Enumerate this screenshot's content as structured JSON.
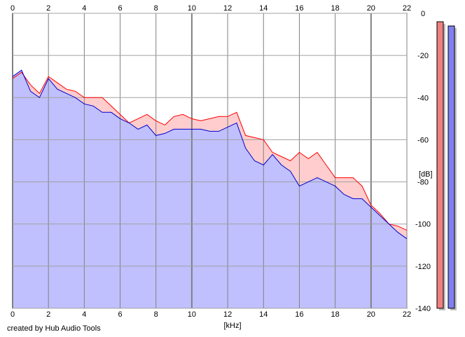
{
  "credit": "created by Hub Audio Tools",
  "chart_data": {
    "type": "area",
    "xlabel": "[kHz]",
    "ylabel": "[dB]",
    "xlim": [
      0,
      22
    ],
    "ylim": [
      -140,
      0
    ],
    "x_ticks": [
      "0",
      "2",
      "4",
      "6",
      "8",
      "10",
      "12",
      "14",
      "16",
      "18",
      "20",
      "22"
    ],
    "y_ticks": [
      "0",
      "-20",
      "-40",
      "-60",
      "-80",
      "-100",
      "-120",
      "-140"
    ],
    "grid": true,
    "series": [
      {
        "color": "#ff0000",
        "fill": "#ffc0c0",
        "x": [
          0,
          0.5,
          1,
          1.5,
          2,
          2.5,
          3,
          3.5,
          4,
          4.5,
          5,
          5.5,
          6,
          6.5,
          7,
          7.5,
          8,
          8.5,
          9,
          9.5,
          10,
          10.5,
          11,
          11.5,
          12,
          12.5,
          13,
          13.5,
          14,
          14.5,
          15,
          15.5,
          16,
          16.5,
          17,
          17.5,
          18,
          18.5,
          19,
          19.5,
          20,
          20.5,
          21,
          21.5,
          22
        ],
        "y": [
          -31,
          -28,
          -34,
          -38,
          -30,
          -33,
          -36,
          -37,
          -40,
          -40,
          -40,
          -44,
          -48,
          -52,
          -50,
          -48,
          -51,
          -53,
          -49,
          -48,
          -50,
          -51,
          -50,
          -49,
          -49,
          -47,
          -58,
          -59,
          -60,
          -66,
          -68,
          -70,
          -66,
          -69,
          -66,
          -72,
          -78,
          -78,
          -78,
          -82,
          -91,
          -95,
          -100,
          -101,
          -103
        ]
      },
      {
        "color": "#0000cc",
        "fill": "#c0c0ff",
        "x": [
          0,
          0.5,
          1,
          1.5,
          2,
          2.5,
          3,
          3.5,
          4,
          4.5,
          5,
          5.5,
          6,
          6.5,
          7,
          7.5,
          8,
          8.5,
          9,
          9.5,
          10,
          10.5,
          11,
          11.5,
          12,
          12.5,
          13,
          13.5,
          14,
          14.5,
          15,
          15.5,
          16,
          16.5,
          17,
          17.5,
          18,
          18.5,
          19,
          19.5,
          20,
          20.5,
          21,
          21.5,
          22
        ],
        "y": [
          -30,
          -27,
          -37,
          -40,
          -31,
          -36,
          -38,
          -40,
          -43,
          -44,
          -47,
          -47,
          -50,
          -52,
          -55,
          -53,
          -58,
          -57,
          -55,
          -55,
          -55,
          -55,
          -56,
          -56,
          -54,
          -52,
          -64,
          -70,
          -72,
          -67,
          -72,
          -75,
          -82,
          -80,
          -78,
          -80,
          -82,
          -86,
          -88,
          -88,
          -92,
          -96,
          -100,
          -104,
          -107
        ]
      }
    ],
    "meters": [
      {
        "color": "#f08080",
        "level_db": -4
      },
      {
        "color": "#8080f0",
        "level_db": -6
      }
    ]
  }
}
